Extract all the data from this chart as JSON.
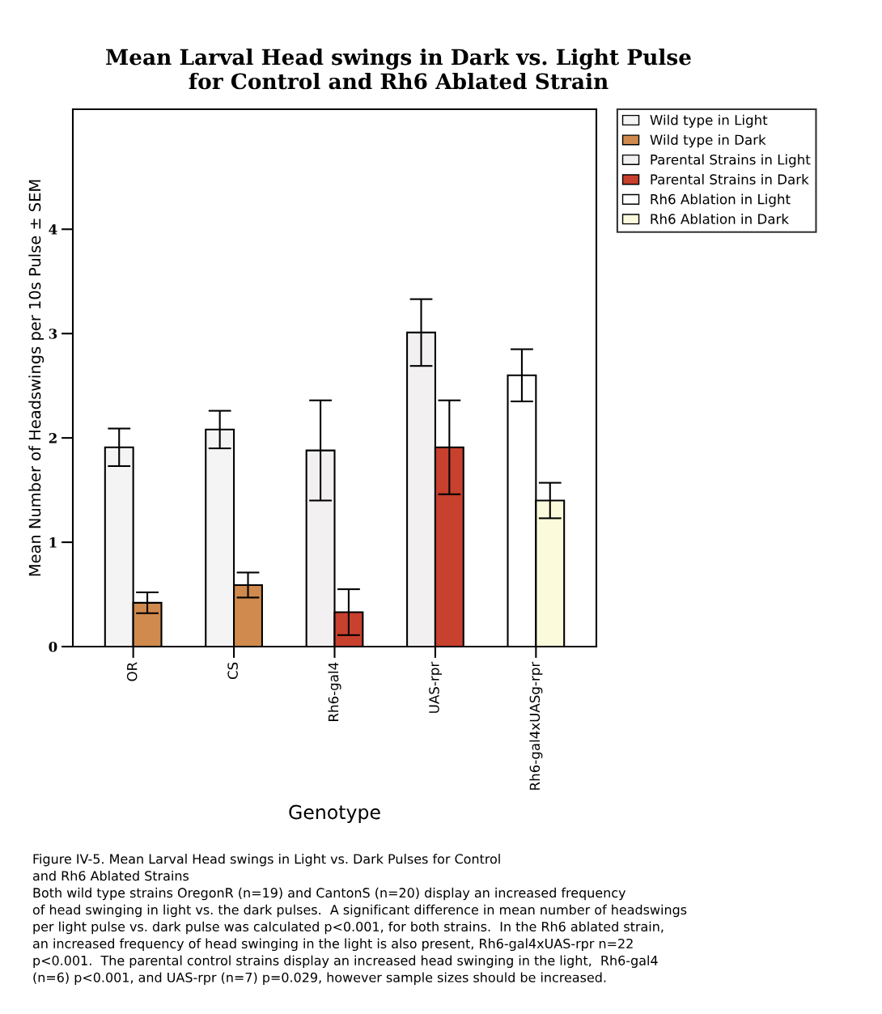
{
  "chart_data": {
    "type": "bar",
    "title": "Mean Larval Head swings in Dark vs. Light Pulse\nfor Control and Rh6 Ablated Strain",
    "xlabel": "Genotype",
    "ylabel": "Mean Number of Headswings per 10s Pulse ± SEM",
    "categories": [
      "OR",
      "CS",
      "Rh6-gal4",
      "UAS-rpr",
      "Rh6-gal4xUASg-rpr"
    ],
    "series": [
      {
        "name": "Wild type in Light",
        "color": "#f4f4f4",
        "values": [
          1.91,
          2.08,
          null,
          null,
          null
        ],
        "errors": [
          0.18,
          0.18,
          null,
          null,
          null
        ]
      },
      {
        "name": "Wild type in Dark",
        "color": "#d08a4e",
        "values": [
          0.42,
          0.59,
          null,
          null,
          null
        ],
        "errors": [
          0.1,
          0.12,
          null,
          null,
          null
        ]
      },
      {
        "name": "Parental Strains in Light",
        "color": "#f2f0f0",
        "values": [
          null,
          null,
          1.88,
          3.01,
          null
        ],
        "errors": [
          null,
          null,
          0.48,
          0.32,
          null
        ]
      },
      {
        "name": "Parental Strains in Dark",
        "color": "#c8402e",
        "values": [
          null,
          null,
          0.33,
          1.91,
          null
        ],
        "errors": [
          null,
          null,
          0.22,
          0.45,
          null
        ]
      },
      {
        "name": "Rh6 Ablation in Light",
        "color": "#ffffff",
        "values": [
          null,
          null,
          null,
          null,
          2.6
        ],
        "errors": [
          null,
          null,
          null,
          null,
          0.25
        ]
      },
      {
        "name": "Rh6 Ablation in Dark",
        "color": "#fbfbdc",
        "values": [
          null,
          null,
          null,
          null,
          1.4
        ],
        "errors": [
          null,
          null,
          null,
          null,
          0.17
        ]
      }
    ],
    "ylim": [
      0,
      5.15
    ],
    "yticks": [
      0,
      1,
      2,
      3,
      4
    ],
    "grid": false,
    "legend": "right",
    "annotations": [
      "Figure IV-5. Mean Larval Head swings in Light vs. Dark Pulses for Control\nand Rh6 Ablated Strains\nBoth wild type strains OregonR (n=19) and CantonS (n=20) display an increased frequency\nof head swinging in light vs. the dark pulses.  A significant difference in mean number of headswings\nper light pulse vs. dark pulse was calculated p<0.001, for both strains.  In the Rh6 ablated strain,\nan increased frequency of head swinging in the light is also present, Rh6-gal4xUAS-rpr n=22\np<0.001.  The parental control strains display an increased head swinging in the light,  Rh6-gal4\n(n=6) p<0.001, and UAS-rpr (n=7) p=0.029, however sample sizes should be increased."
    ]
  }
}
